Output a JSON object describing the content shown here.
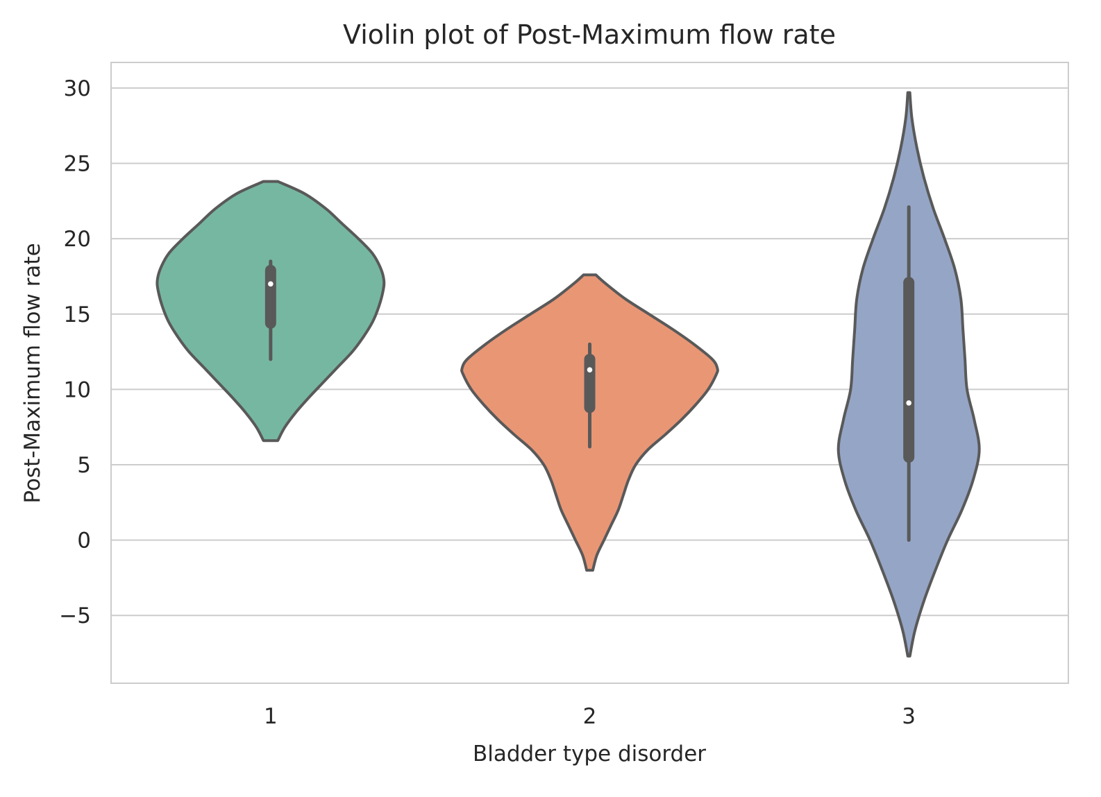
{
  "chart_data": {
    "type": "violin",
    "title": "Violin plot of Post-Maximum flow rate",
    "xlabel": "Bladder type disorder",
    "ylabel": "Post-Maximum flow rate",
    "categories": [
      "1",
      "2",
      "3"
    ],
    "ylim": [
      -9.5,
      31.7
    ],
    "yticks": [
      -5,
      0,
      5,
      10,
      15,
      20,
      25,
      30
    ],
    "ytick_labels": [
      "−5",
      "0",
      "5",
      "10",
      "15",
      "20",
      "25",
      "30"
    ],
    "grid": "horizontal",
    "violins": [
      {
        "category": "1",
        "color": "#76b7a2",
        "min_extent": 6.6,
        "max_extent": 23.8,
        "density_profile": [
          [
            6.6,
            0.07
          ],
          [
            7.5,
            0.14
          ],
          [
            8.5,
            0.25
          ],
          [
            9.5,
            0.38
          ],
          [
            10.5,
            0.52
          ],
          [
            11.5,
            0.66
          ],
          [
            12.5,
            0.8
          ],
          [
            13.5,
            0.91
          ],
          [
            14.5,
            1.0
          ],
          [
            15.5,
            1.06
          ],
          [
            16.5,
            1.1
          ],
          [
            17.2,
            1.11
          ],
          [
            18.0,
            1.08
          ],
          [
            19.0,
            1.0
          ],
          [
            20.0,
            0.86
          ],
          [
            21.0,
            0.7
          ],
          [
            22.0,
            0.54
          ],
          [
            23.0,
            0.33
          ],
          [
            23.8,
            0.07
          ]
        ],
        "whisker_low": 12.0,
        "q1": 14.4,
        "median": 17.0,
        "q3": 17.9,
        "whisker_high": 18.5
      },
      {
        "category": "2",
        "color": "#e99675",
        "min_extent": -2.0,
        "max_extent": 17.6,
        "density_profile": [
          [
            -2.0,
            0.03
          ],
          [
            -1.0,
            0.07
          ],
          [
            0.0,
            0.14
          ],
          [
            1.0,
            0.21
          ],
          [
            2.0,
            0.28
          ],
          [
            3.0,
            0.33
          ],
          [
            4.0,
            0.38
          ],
          [
            5.0,
            0.45
          ],
          [
            6.0,
            0.57
          ],
          [
            7.0,
            0.74
          ],
          [
            8.0,
            0.9
          ],
          [
            9.0,
            1.04
          ],
          [
            10.0,
            1.16
          ],
          [
            11.0,
            1.24
          ],
          [
            11.4,
            1.25
          ],
          [
            12.0,
            1.2
          ],
          [
            13.0,
            1.02
          ],
          [
            14.0,
            0.81
          ],
          [
            15.0,
            0.58
          ],
          [
            16.0,
            0.35
          ],
          [
            17.0,
            0.16
          ],
          [
            17.6,
            0.06
          ]
        ],
        "whisker_low": 6.2,
        "q1": 8.8,
        "median": 11.3,
        "q3": 12.0,
        "whisker_high": 13.0
      },
      {
        "category": "3",
        "color": "#95a5c6",
        "min_extent": -7.7,
        "max_extent": 29.7,
        "density_profile": [
          [
            -7.7,
            0.01
          ],
          [
            -6.0,
            0.06
          ],
          [
            -4.0,
            0.15
          ],
          [
            -2.0,
            0.26
          ],
          [
            0.0,
            0.38
          ],
          [
            2.0,
            0.52
          ],
          [
            4.0,
            0.63
          ],
          [
            6.0,
            0.69
          ],
          [
            8.0,
            0.64
          ],
          [
            10.0,
            0.57
          ],
          [
            12.0,
            0.55
          ],
          [
            14.0,
            0.53
          ],
          [
            16.0,
            0.51
          ],
          [
            18.0,
            0.45
          ],
          [
            20.0,
            0.35
          ],
          [
            22.0,
            0.24
          ],
          [
            24.0,
            0.15
          ],
          [
            26.0,
            0.08
          ],
          [
            28.0,
            0.03
          ],
          [
            29.7,
            0.01
          ]
        ],
        "whisker_low": 0.0,
        "q1": 5.5,
        "median": 9.1,
        "q3": 17.1,
        "whisker_high": 22.1
      }
    ]
  }
}
